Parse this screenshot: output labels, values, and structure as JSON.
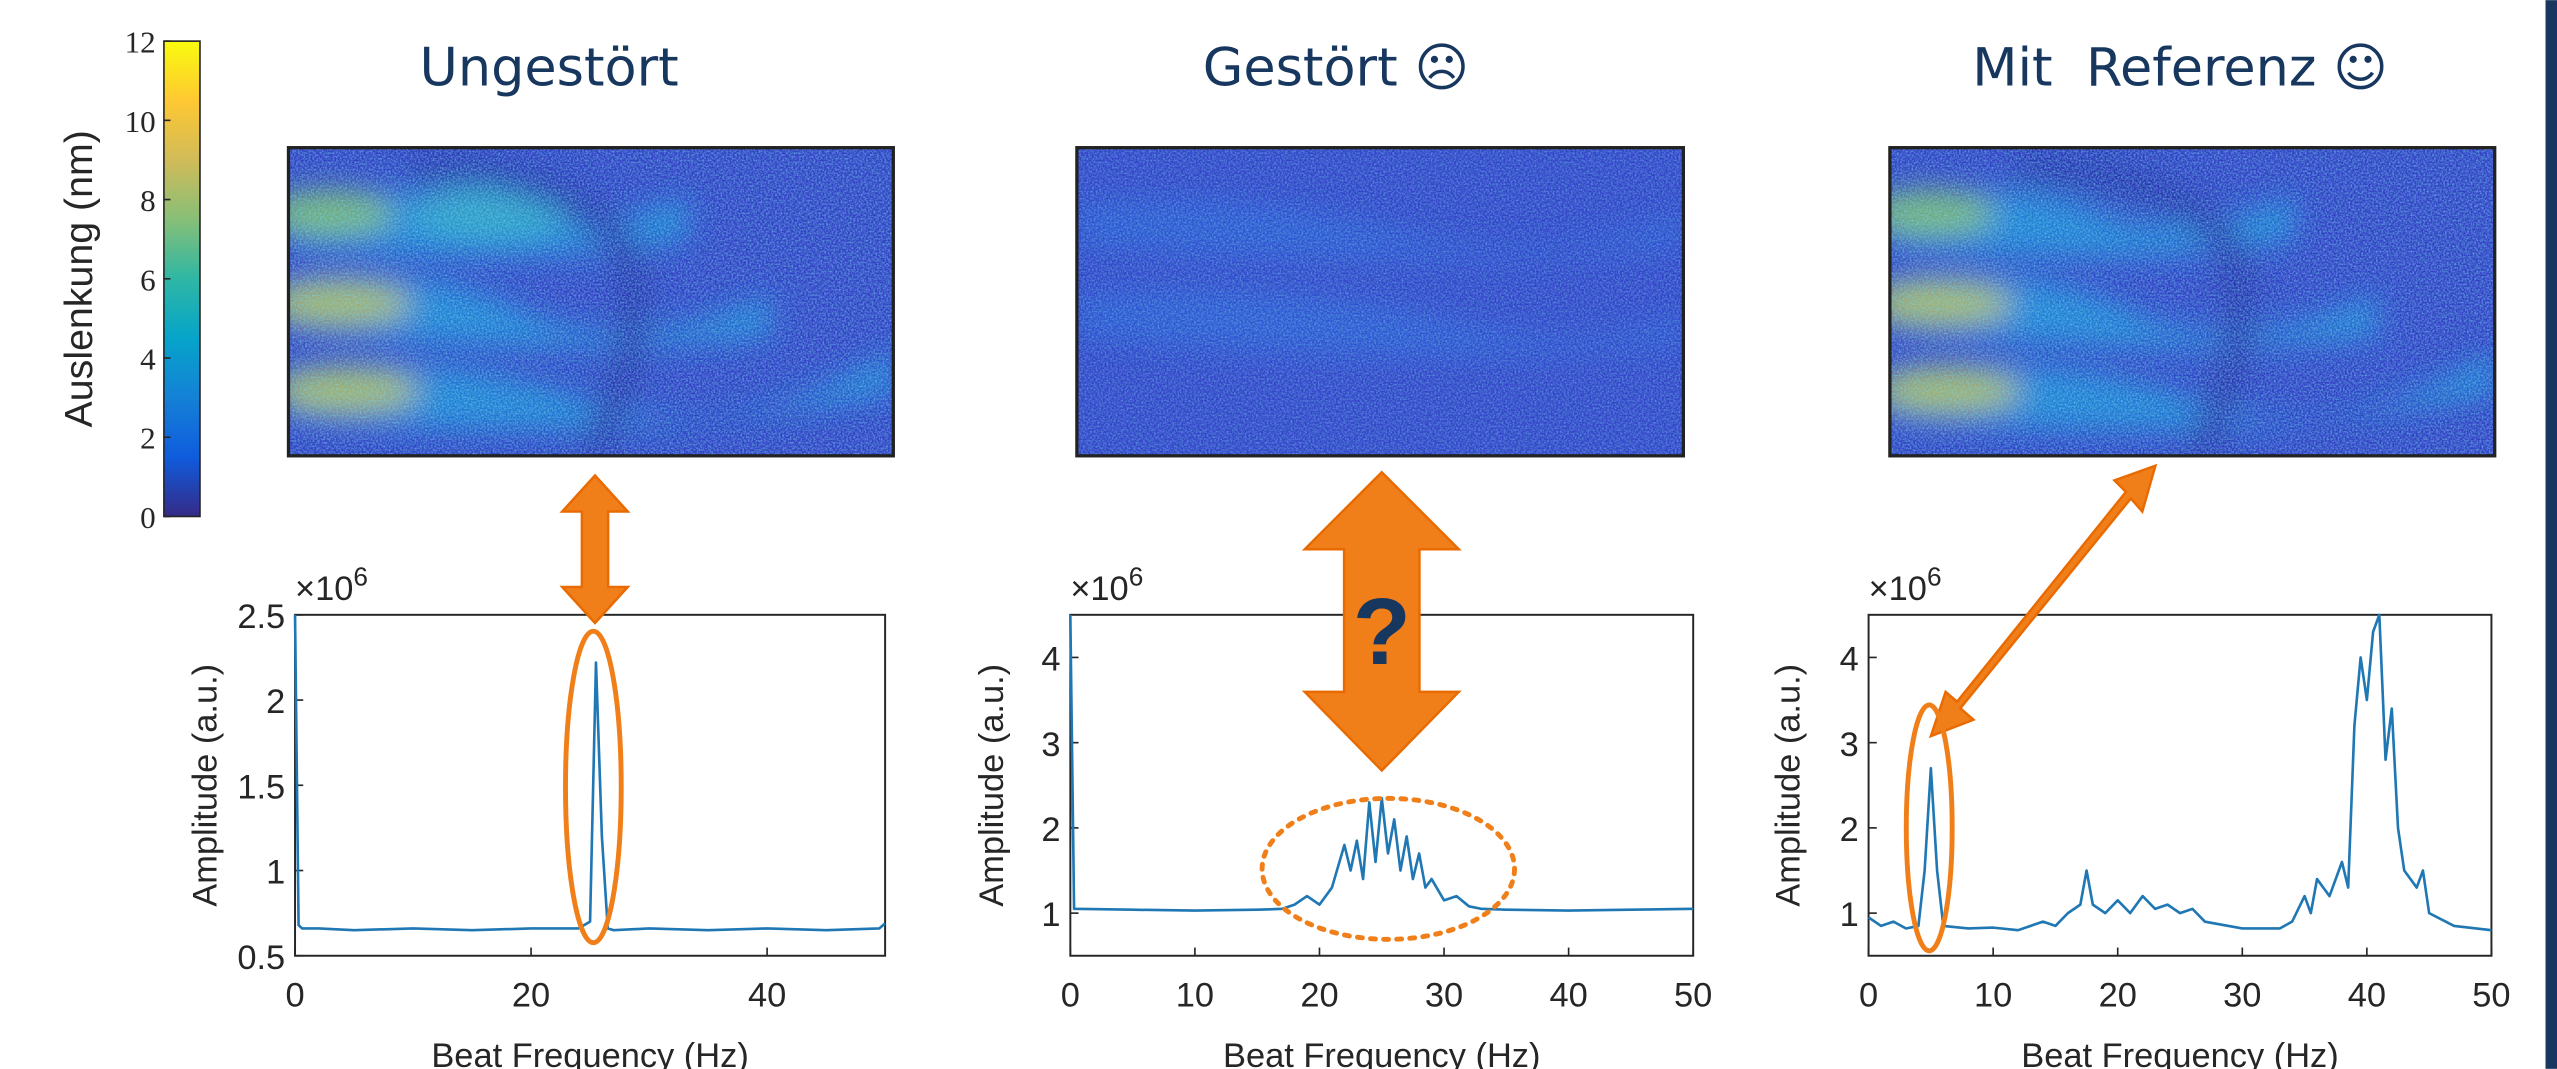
{
  "colorbar": {
    "label": "Auslenkung (nm)",
    "lim": [
      0,
      12
    ],
    "ticks": [
      0,
      2,
      4,
      6,
      8,
      10,
      12
    ],
    "colors": [
      "#352a87",
      "#0f5cdd",
      "#1481d6",
      "#06a4ca",
      "#2eb7a4",
      "#87bf77",
      "#d1bb59",
      "#fec832",
      "#f9fb0e"
    ]
  },
  "panels": [
    {
      "title": "Ungestört"
    },
    {
      "title": "Gestört ☹"
    },
    {
      "title": "Mit  Referenz ☺"
    }
  ],
  "chart_data": [
    {
      "type": "line",
      "x_label": "Beat Frequency (Hz)",
      "y_label": "Amplitude (a.u.)",
      "scale_base": "×10",
      "scale_exponent": "6",
      "xlim": [
        0,
        50
      ],
      "xticks": [
        0,
        20,
        40
      ],
      "ylim": [
        0.5,
        2.5
      ],
      "yticks": [
        0.5,
        1,
        1.5,
        2,
        2.5
      ],
      "color": "#1f77b4",
      "x": [
        0,
        0.3,
        0.6,
        2,
        5,
        10,
        15,
        20,
        24,
        25,
        25.5,
        26,
        26.5,
        27,
        30,
        35,
        40,
        45,
        49.5,
        50
      ],
      "values": [
        2.5,
        0.68,
        0.66,
        0.66,
        0.65,
        0.66,
        0.65,
        0.66,
        0.66,
        0.7,
        2.22,
        1.2,
        0.66,
        0.65,
        0.66,
        0.65,
        0.66,
        0.65,
        0.66,
        0.69
      ]
    },
    {
      "type": "line",
      "x_label": "Beat Frequency (Hz)",
      "y_label": "Amplitude (a.u.)",
      "scale_base": "×10",
      "scale_exponent": "6",
      "annotation": "?",
      "xlim": [
        0,
        50
      ],
      "xticks": [
        0,
        10,
        20,
        30,
        40,
        50
      ],
      "ylim": [
        0.5,
        4.5
      ],
      "yticks": [
        1,
        2,
        3,
        4
      ],
      "color": "#1f77b4",
      "x": [
        0,
        0.3,
        5,
        10,
        15,
        17,
        18,
        19,
        20,
        21,
        22,
        22.5,
        23,
        23.5,
        24,
        24.5,
        25,
        25.5,
        26,
        26.5,
        27,
        27.5,
        28,
        28.5,
        29,
        30,
        31,
        32,
        33,
        35,
        40,
        45,
        50
      ],
      "values": [
        4.5,
        1.05,
        1.04,
        1.03,
        1.04,
        1.05,
        1.1,
        1.2,
        1.1,
        1.3,
        1.8,
        1.5,
        1.85,
        1.4,
        2.3,
        1.6,
        2.35,
        1.7,
        2.1,
        1.5,
        1.9,
        1.4,
        1.7,
        1.3,
        1.4,
        1.15,
        1.2,
        1.08,
        1.05,
        1.04,
        1.03,
        1.04,
        1.05
      ]
    },
    {
      "type": "line",
      "x_label": "Beat Frequency (Hz)",
      "y_label": "Amplitude (a.u.)",
      "scale_base": "×10",
      "scale_exponent": "6",
      "xlim": [
        0,
        50
      ],
      "xticks": [
        0,
        10,
        20,
        30,
        40,
        50
      ],
      "ylim": [
        0.5,
        4.5
      ],
      "yticks": [
        1,
        2,
        3,
        4
      ],
      "color": "#1f77b4",
      "x": [
        0,
        1,
        2,
        3,
        4,
        4.5,
        5,
        5.5,
        6,
        8,
        10,
        12,
        14,
        15,
        16,
        17,
        17.5,
        18,
        19,
        20,
        21,
        22,
        23,
        24,
        25,
        26,
        27,
        30,
        33,
        34,
        35,
        35.5,
        36,
        37,
        38,
        38.5,
        39,
        39.5,
        40,
        40.5,
        41,
        41.5,
        42,
        42.5,
        43,
        44,
        44.5,
        45,
        47,
        50
      ],
      "values": [
        0.95,
        0.85,
        0.9,
        0.82,
        0.85,
        1.5,
        2.7,
        1.5,
        0.85,
        0.82,
        0.83,
        0.8,
        0.9,
        0.85,
        1.0,
        1.1,
        1.5,
        1.1,
        1.0,
        1.15,
        1.0,
        1.2,
        1.05,
        1.1,
        1.0,
        1.05,
        0.9,
        0.82,
        0.82,
        0.9,
        1.2,
        1.0,
        1.4,
        1.2,
        1.6,
        1.3,
        3.2,
        4.0,
        3.5,
        4.3,
        4.5,
        2.8,
        3.4,
        2.0,
        1.5,
        1.3,
        1.5,
        1.0,
        0.85,
        0.8
      ]
    }
  ]
}
